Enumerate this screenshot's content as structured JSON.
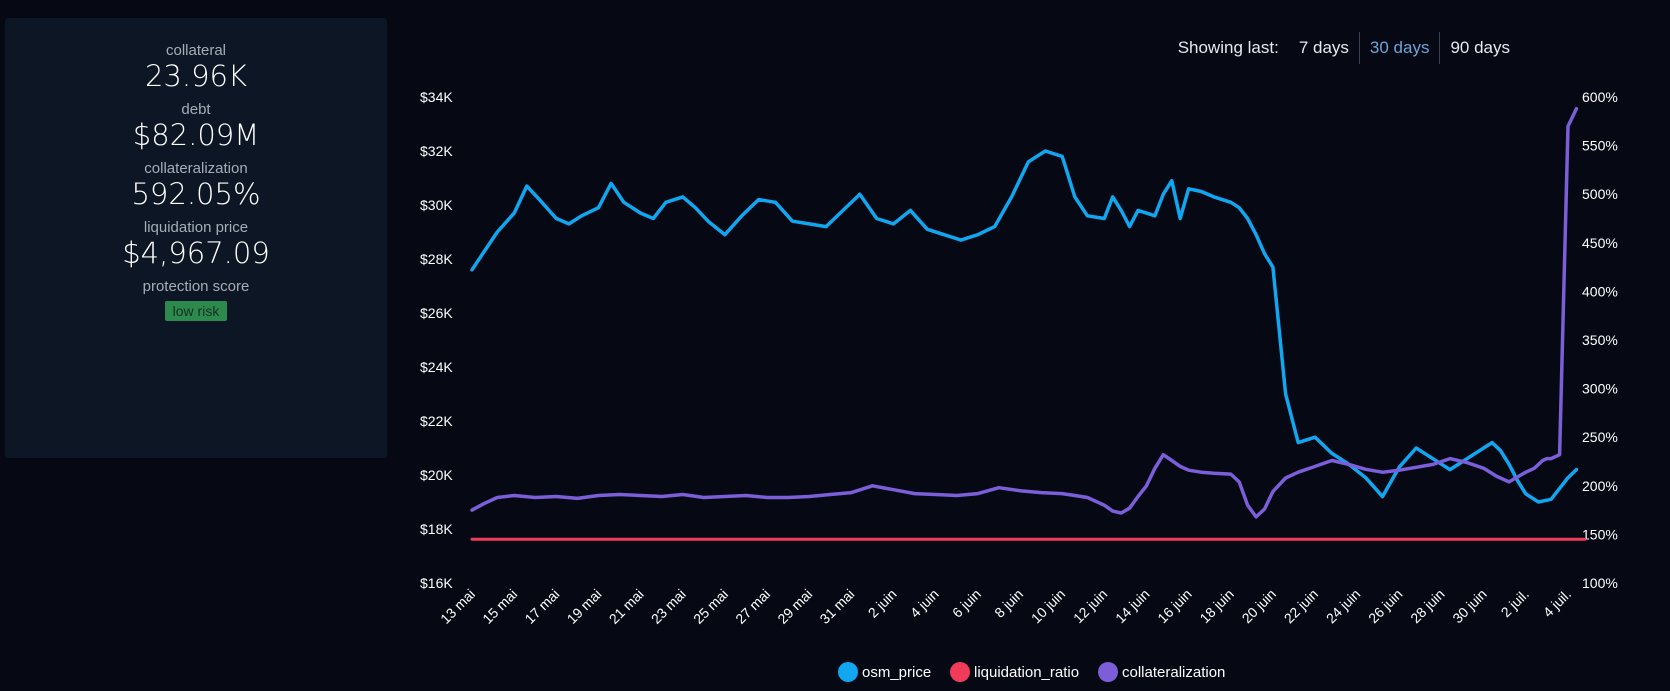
{
  "stats": {
    "collateral_label": "collateral",
    "collateral_value": "23.96K",
    "debt_label": "debt",
    "debt_value": "$82.09M",
    "collateralization_label": "collateralization",
    "collateralization_value": "592.05%",
    "liquidation_label": "liquidation price",
    "liquidation_value": "$4,967.09",
    "protection_label": "protection score",
    "protection_value": "low risk"
  },
  "range": {
    "label": "Showing last:",
    "options": [
      "7 days",
      "30 days",
      "90 days"
    ],
    "active": "30 days"
  },
  "colors": {
    "osm_price": "#10a6f0",
    "liquidation_ratio": "#f03c5a",
    "collateralization": "#7b5ed8"
  },
  "chart_data": {
    "type": "line",
    "x_labels": [
      "13 mai",
      "15 mai",
      "17 mai",
      "19 mai",
      "21 mai",
      "23 mai",
      "25 mai",
      "27 mai",
      "29 mai",
      "31 mai",
      "2 juin",
      "4 juin",
      "6 juin",
      "8 juin",
      "10 juin",
      "12 juin",
      "14 juin",
      "16 juin",
      "18 juin",
      "20 juin",
      "22 juin",
      "24 juin",
      "26 juin",
      "28 juin",
      "30 juin",
      "2 juil.",
      "4 juil."
    ],
    "y_left": {
      "ticks": [
        "$16K",
        "$18K",
        "$20K",
        "$22K",
        "$24K",
        "$26K",
        "$28K",
        "$30K",
        "$32K",
        "$34K"
      ],
      "range": [
        16000,
        34000
      ]
    },
    "y_right": {
      "ticks": [
        "100%",
        "150%",
        "200%",
        "250%",
        "300%",
        "350%",
        "400%",
        "450%",
        "500%",
        "550%",
        "600%"
      ],
      "range": [
        100,
        600
      ]
    },
    "series": [
      {
        "name": "osm_price",
        "axis": "left",
        "x": [
          0,
          0.3,
          0.6,
          1,
          1.3,
          1.6,
          2,
          2.3,
          2.6,
          3,
          3.3,
          3.6,
          4,
          4.3,
          4.6,
          5,
          5.3,
          5.6,
          6,
          6.4,
          6.8,
          7.2,
          7.6,
          8,
          8.4,
          8.8,
          9.2,
          9.6,
          10,
          10.4,
          10.8,
          11.2,
          11.6,
          12,
          12.4,
          12.8,
          13.2,
          13.6,
          14,
          14.3,
          14.6,
          15,
          15.2,
          15.4,
          15.6,
          15.8,
          16,
          16.2,
          16.4,
          16.6,
          16.8,
          17,
          17.3,
          17.6,
          18,
          18.2,
          18.4,
          18.6,
          18.8,
          19,
          19.3,
          19.6,
          20,
          20.4,
          20.8,
          21.2,
          21.6,
          22,
          22.4,
          22.8,
          23.2,
          23.6,
          24,
          24.2,
          24.4,
          24.6,
          24.8,
          25,
          25.3,
          25.6,
          26,
          26.2
        ],
        "y": [
          27600,
          28300,
          29000,
          29700,
          30700,
          30200,
          29500,
          29300,
          29600,
          29900,
          30800,
          30100,
          29700,
          29500,
          30100,
          30300,
          29900,
          29400,
          28900,
          29600,
          30200,
          30100,
          29400,
          29300,
          29200,
          29800,
          30400,
          29500,
          29300,
          29800,
          29100,
          28900,
          28700,
          28900,
          29200,
          30300,
          31600,
          32000,
          31800,
          30300,
          29600,
          29500,
          30300,
          29800,
          29200,
          29800,
          29700,
          29600,
          30400,
          30900,
          29500,
          30600,
          30500,
          30300,
          30100,
          29900,
          29500,
          28900,
          28200,
          27700,
          23000,
          21200,
          21400,
          20800,
          20400,
          19900,
          19200,
          20300,
          21000,
          20600,
          20200,
          20600,
          21000,
          21200,
          20900,
          20400,
          19800,
          19300,
          19000,
          19100,
          19900,
          20200
        ]
      },
      {
        "name": "liquidation_ratio",
        "axis": "right",
        "x": [
          0,
          26.4
        ],
        "y": [
          145,
          145
        ]
      },
      {
        "name": "collateralization",
        "axis": "right",
        "x": [
          0,
          0.3,
          0.6,
          1,
          1.5,
          2,
          2.5,
          3,
          3.5,
          4,
          4.5,
          5,
          5.5,
          6,
          6.5,
          7,
          7.5,
          8,
          8.5,
          9,
          9.5,
          10,
          10.5,
          11,
          11.5,
          12,
          12.5,
          13,
          13.5,
          14,
          14.3,
          14.6,
          15,
          15.2,
          15.4,
          15.6,
          15.8,
          16,
          16.2,
          16.4,
          16.6,
          16.8,
          17,
          17.3,
          17.6,
          18,
          18.2,
          18.4,
          18.6,
          18.8,
          19,
          19.3,
          19.6,
          20,
          20.4,
          20.8,
          21.2,
          21.6,
          22,
          22.4,
          22.8,
          23.2,
          23.6,
          24,
          24.3,
          24.6,
          25,
          25.2,
          25.4,
          25.5,
          25.6,
          25.8,
          26,
          26.2
        ],
        "y": [
          175,
          182,
          188,
          190,
          188,
          189,
          187,
          190,
          191,
          190,
          189,
          191,
          188,
          189,
          190,
          188,
          188,
          189,
          191,
          193,
          200,
          196,
          192,
          191,
          190,
          192,
          198,
          195,
          193,
          192,
          190,
          188,
          180,
          174,
          172,
          177,
          189,
          200,
          218,
          232,
          226,
          220,
          216,
          214,
          213,
          212,
          204,
          180,
          168,
          176,
          194,
          208,
          214,
          220,
          226,
          222,
          217,
          214,
          216,
          219,
          222,
          228,
          224,
          218,
          210,
          204,
          214,
          218,
          226,
          228,
          228,
          232,
          570,
          588
        ]
      }
    ],
    "legend": [
      "osm_price",
      "liquidation_ratio",
      "collateralization"
    ]
  }
}
